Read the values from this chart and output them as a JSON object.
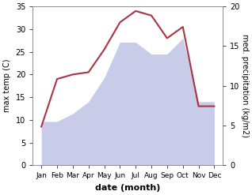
{
  "months": [
    "Jan",
    "Feb",
    "Mar",
    "Apr",
    "May",
    "Jun",
    "Jul",
    "Aug",
    "Sep",
    "Oct",
    "Nov",
    "Dec"
  ],
  "temp": [
    8.5,
    19.0,
    20.0,
    20.5,
    25.5,
    31.5,
    34.0,
    33.0,
    28.0,
    30.5,
    13.0,
    13.0
  ],
  "precip": [
    5.5,
    5.5,
    6.5,
    8.0,
    11.0,
    15.5,
    15.5,
    14.0,
    14.0,
    16.0,
    8.0,
    8.0
  ],
  "temp_color": "#aa3344",
  "precip_fill_color": "#c8cce8",
  "temp_ylim": [
    0,
    35
  ],
  "precip_ylim": [
    0,
    20
  ],
  "left_ticks": [
    0,
    5,
    10,
    15,
    20,
    25,
    30,
    35
  ],
  "right_ticks": [
    0,
    5,
    10,
    15,
    20
  ],
  "xlabel": "date (month)",
  "ylabel_left": "max temp (C)",
  "ylabel_right": "med. precipitation (kg/m2)",
  "background_color": "#ffffff",
  "scale_factor": 1.75
}
